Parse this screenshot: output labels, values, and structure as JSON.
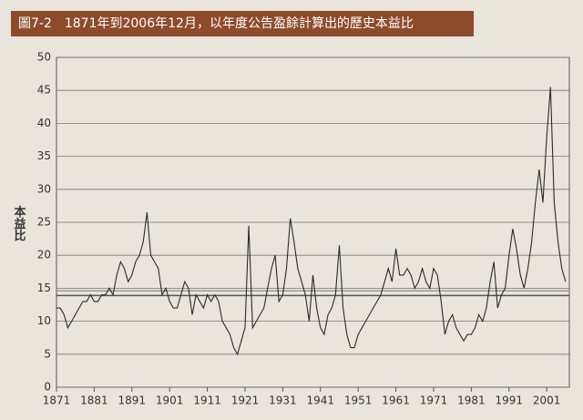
{
  "chart_data": {
    "type": "line",
    "title": "圖7-2　1871年到2006年12月，以年度公告盈餘計算出的歷史本益比",
    "y_label": "本益比",
    "x": [
      1871,
      1872,
      1873,
      1874,
      1875,
      1876,
      1877,
      1878,
      1879,
      1880,
      1881,
      1882,
      1883,
      1884,
      1885,
      1886,
      1887,
      1888,
      1889,
      1890,
      1891,
      1892,
      1893,
      1894,
      1895,
      1896,
      1897,
      1898,
      1899,
      1900,
      1901,
      1902,
      1903,
      1904,
      1905,
      1906,
      1907,
      1908,
      1909,
      1910,
      1911,
      1912,
      1913,
      1914,
      1915,
      1916,
      1917,
      1918,
      1919,
      1920,
      1921,
      1922,
      1923,
      1924,
      1925,
      1926,
      1927,
      1928,
      1929,
      1930,
      1931,
      1932,
      1933,
      1934,
      1935,
      1936,
      1937,
      1938,
      1939,
      1940,
      1941,
      1942,
      1943,
      1944,
      1945,
      1946,
      1947,
      1948,
      1949,
      1950,
      1951,
      1952,
      1953,
      1954,
      1955,
      1956,
      1957,
      1958,
      1959,
      1960,
      1961,
      1962,
      1963,
      1964,
      1965,
      1966,
      1967,
      1968,
      1969,
      1970,
      1971,
      1972,
      1973,
      1974,
      1975,
      1976,
      1977,
      1978,
      1979,
      1980,
      1981,
      1982,
      1983,
      1984,
      1985,
      1986,
      1987,
      1988,
      1989,
      1990,
      1991,
      1992,
      1993,
      1994,
      1995,
      1996,
      1997,
      1998,
      1999,
      2000,
      2001,
      2002,
      2003,
      2004,
      2005,
      2006
    ],
    "series": [
      {
        "color": "#2a2a2a",
        "values": [
          12,
          12,
          11,
          9,
          10,
          11,
          12,
          13,
          13,
          14,
          13,
          13,
          14,
          14,
          15,
          14,
          17,
          19,
          18,
          16,
          17,
          19,
          20,
          22,
          26.5,
          20,
          19,
          18,
          14,
          15,
          13,
          12,
          12,
          14,
          16,
          15,
          11,
          14,
          13,
          12,
          14,
          13,
          14,
          13,
          10,
          9,
          8,
          6,
          5,
          7,
          9,
          24.5,
          9,
          10,
          11,
          12,
          15,
          18,
          20,
          13,
          14,
          18,
          25.6,
          22,
          18,
          16,
          14,
          10,
          17,
          12,
          9,
          8,
          11,
          12,
          14,
          21.5,
          12,
          8,
          6,
          6,
          8,
          9,
          10,
          11,
          12,
          13,
          14,
          16,
          18,
          16,
          21,
          17,
          17,
          18,
          17,
          15,
          16,
          18,
          16,
          15,
          18,
          17,
          13,
          8,
          10,
          11,
          9,
          8,
          7,
          8,
          8,
          9,
          11,
          10,
          12,
          16,
          19,
          12,
          14,
          15,
          20,
          24,
          21,
          17,
          15,
          18,
          22,
          28,
          33,
          28,
          38,
          45.5,
          28,
          22,
          18,
          16
        ]
      }
    ],
    "hlines": [
      14.6,
      13.9
    ],
    "xlim": [
      1871,
      2007
    ],
    "ylim": [
      0,
      50
    ],
    "xticks": [
      1871,
      1881,
      1891,
      1901,
      1911,
      1921,
      1931,
      1941,
      1951,
      1961,
      1971,
      1981,
      1991,
      2001
    ],
    "yticks": [
      0,
      5,
      10,
      15,
      20,
      25,
      30,
      35,
      40,
      45,
      50
    ],
    "grid": true
  }
}
